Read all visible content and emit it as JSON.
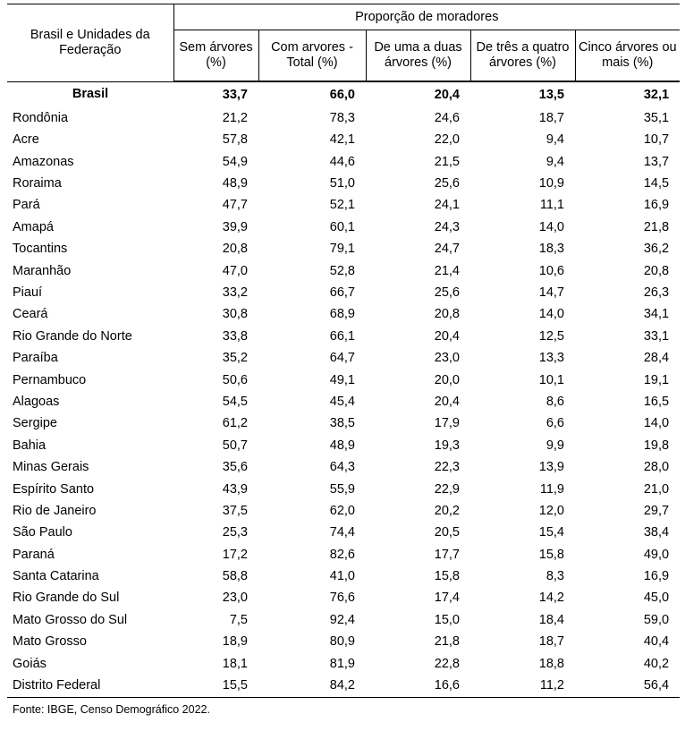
{
  "table": {
    "first_header": "Brasil e Unidades da Federação",
    "group_header": "Proporção de moradores",
    "columns": [
      "Sem árvores (%)",
      "Com arvores - Total (%)",
      "De uma a duas árvores (%)",
      "De três a quatro árvores (%)",
      "Cinco árvores ou mais (%)"
    ],
    "rows": [
      {
        "name": "Brasil",
        "values": [
          "33,7",
          "66,0",
          "20,4",
          "13,5",
          "32,1"
        ]
      },
      {
        "name": "Rondônia",
        "values": [
          "21,2",
          "78,3",
          "24,6",
          "18,7",
          "35,1"
        ]
      },
      {
        "name": "Acre",
        "values": [
          "57,8",
          "42,1",
          "22,0",
          "9,4",
          "10,7"
        ]
      },
      {
        "name": "Amazonas",
        "values": [
          "54,9",
          "44,6",
          "21,5",
          "9,4",
          "13,7"
        ]
      },
      {
        "name": "Roraima",
        "values": [
          "48,9",
          "51,0",
          "25,6",
          "10,9",
          "14,5"
        ]
      },
      {
        "name": "Pará",
        "values": [
          "47,7",
          "52,1",
          "24,1",
          "11,1",
          "16,9"
        ]
      },
      {
        "name": "Amapá",
        "values": [
          "39,9",
          "60,1",
          "24,3",
          "14,0",
          "21,8"
        ]
      },
      {
        "name": "Tocantins",
        "values": [
          "20,8",
          "79,1",
          "24,7",
          "18,3",
          "36,2"
        ]
      },
      {
        "name": "Maranhão",
        "values": [
          "47,0",
          "52,8",
          "21,4",
          "10,6",
          "20,8"
        ]
      },
      {
        "name": "Piauí",
        "values": [
          "33,2",
          "66,7",
          "25,6",
          "14,7",
          "26,3"
        ]
      },
      {
        "name": "Ceará",
        "values": [
          "30,8",
          "68,9",
          "20,8",
          "14,0",
          "34,1"
        ]
      },
      {
        "name": "Rio Grande do Norte",
        "values": [
          "33,8",
          "66,1",
          "20,4",
          "12,5",
          "33,1"
        ]
      },
      {
        "name": "Paraíba",
        "values": [
          "35,2",
          "64,7",
          "23,0",
          "13,3",
          "28,4"
        ]
      },
      {
        "name": "Pernambuco",
        "values": [
          "50,6",
          "49,1",
          "20,0",
          "10,1",
          "19,1"
        ]
      },
      {
        "name": "Alagoas",
        "values": [
          "54,5",
          "45,4",
          "20,4",
          "8,6",
          "16,5"
        ]
      },
      {
        "name": "Sergipe",
        "values": [
          "61,2",
          "38,5",
          "17,9",
          "6,6",
          "14,0"
        ]
      },
      {
        "name": "Bahia",
        "values": [
          "50,7",
          "48,9",
          "19,3",
          "9,9",
          "19,8"
        ]
      },
      {
        "name": "Minas Gerais",
        "values": [
          "35,6",
          "64,3",
          "22,3",
          "13,9",
          "28,0"
        ]
      },
      {
        "name": "Espírito Santo",
        "values": [
          "43,9",
          "55,9",
          "22,9",
          "11,9",
          "21,0"
        ]
      },
      {
        "name": "Rio de Janeiro",
        "values": [
          "37,5",
          "62,0",
          "20,2",
          "12,0",
          "29,7"
        ]
      },
      {
        "name": "São Paulo",
        "values": [
          "25,3",
          "74,4",
          "20,5",
          "15,4",
          "38,4"
        ]
      },
      {
        "name": "Paraná",
        "values": [
          "17,2",
          "82,6",
          "17,7",
          "15,8",
          "49,0"
        ]
      },
      {
        "name": "Santa Catarina",
        "values": [
          "58,8",
          "41,0",
          "15,8",
          "8,3",
          "16,9"
        ]
      },
      {
        "name": "Rio Grande do Sul",
        "values": [
          "23,0",
          "76,6",
          "17,4",
          "14,2",
          "45,0"
        ]
      },
      {
        "name": "Mato Grosso do Sul",
        "values": [
          "7,5",
          "92,4",
          "15,0",
          "18,4",
          "59,0"
        ]
      },
      {
        "name": "Mato Grosso",
        "values": [
          "18,9",
          "80,9",
          "21,8",
          "18,7",
          "40,4"
        ]
      },
      {
        "name": "Goiás",
        "values": [
          "18,1",
          "81,9",
          "22,8",
          "18,8",
          "40,2"
        ]
      },
      {
        "name": "Distrito Federal",
        "values": [
          "15,5",
          "84,2",
          "16,6",
          "11,2",
          "56,4"
        ]
      }
    ]
  },
  "source": "Fonte: IBGE, Censo Demográfico 2022."
}
